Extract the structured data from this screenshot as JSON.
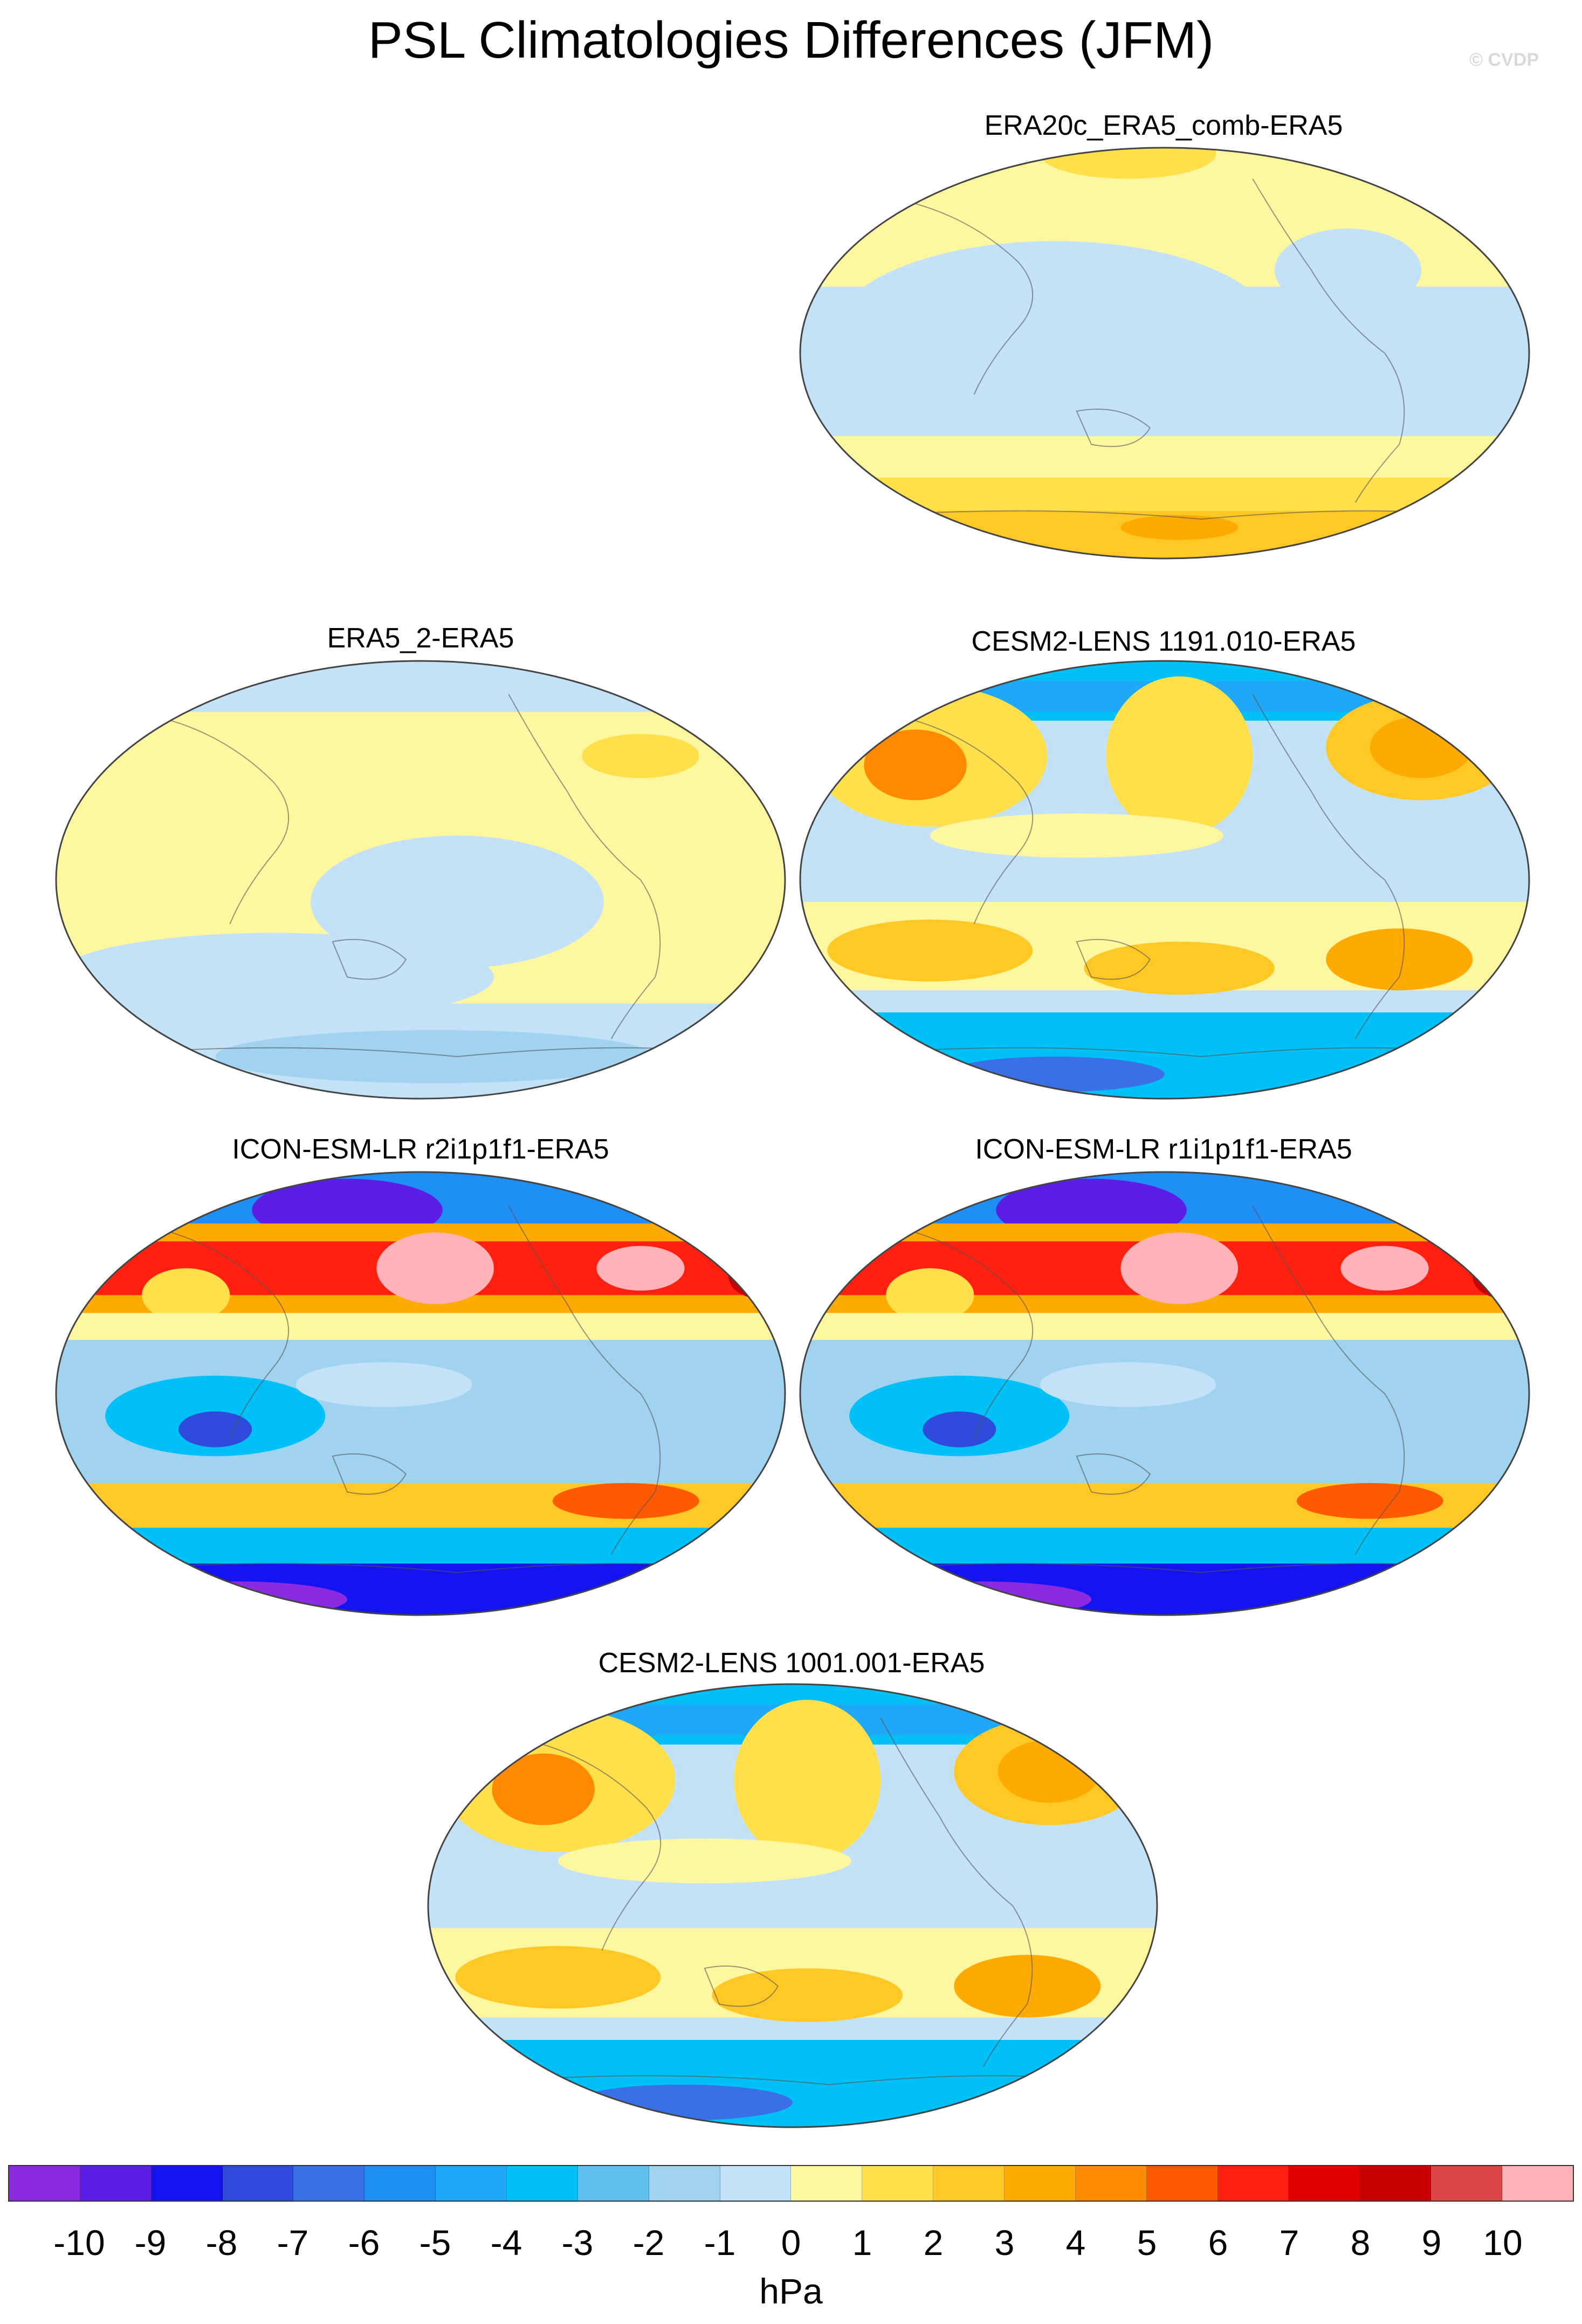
{
  "title": "PSL Climatologies Differences (JFM)",
  "credit": "© CVDP",
  "colorbar": {
    "units": "hPa",
    "tick_labels": [
      "-10",
      "-9",
      "-8",
      "-7",
      "-6",
      "-5",
      "-4",
      "-3",
      "-2",
      "-1",
      "0",
      "1",
      "2",
      "3",
      "4",
      "5",
      "6",
      "7",
      "8",
      "9",
      "10"
    ],
    "colors": [
      "#8a2be2",
      "#5a1ee6",
      "#1414f0",
      "#2e4bdc",
      "#3a70e6",
      "#1f8ff5",
      "#1ea8f5",
      "#00c0f8",
      "#5ec0f0",
      "#9fd3f0",
      "#c4e2f7",
      "#fff7a0",
      "#ffe04a",
      "#ffc824",
      "#ffaa00",
      "#ff8a00",
      "#ff5a00",
      "#ff2010",
      "#e00000",
      "#c80000",
      "#dd4444",
      "#ffb3b8"
    ]
  },
  "panels": [
    {
      "title": "ERA20c_ERA5_comb-ERA5",
      "pattern": "era20c"
    },
    {
      "title": "ERA5_2-ERA5",
      "pattern": "era5_2"
    },
    {
      "title": "CESM2-LENS 1191.010-ERA5",
      "pattern": "cesm"
    },
    {
      "title": "ICON-ESM-LR r2i1p1f1-ERA5",
      "pattern": "icon"
    },
    {
      "title": "ICON-ESM-LR r1i1p1f1-ERA5",
      "pattern": "icon"
    },
    {
      "title": "CESM2-LENS 1001.001-ERA5",
      "pattern": "cesm"
    }
  ]
}
